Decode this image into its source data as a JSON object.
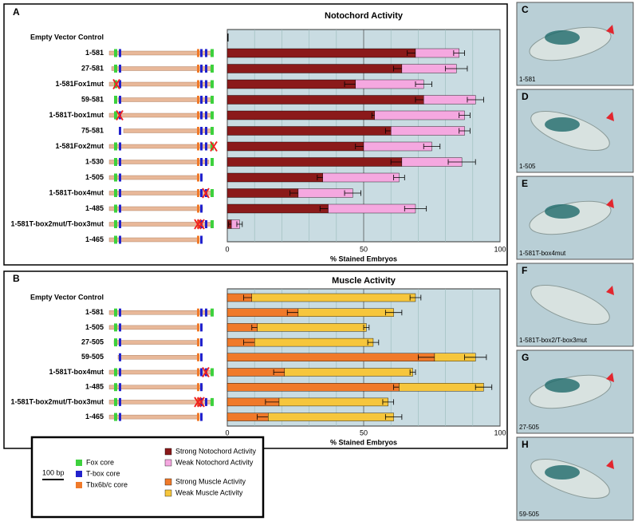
{
  "chart_data": [
    {
      "type": "stacked-barh",
      "panel": "A",
      "title": "Notochord Activity",
      "xlabel": "% Stained Embryos",
      "categories": [
        "Empty Vector Control",
        "1-581",
        "27-581",
        "1-581Fox1mut",
        "59-581",
        "1-581T-box1mut",
        "75-581",
        "1-581Fox2mut",
        "1-530",
        "1-505",
        "1-581T-box4mut",
        "1-485",
        "1-581T-box2mut/T-box3mut",
        "1-465"
      ],
      "series": [
        {
          "name": "Strong Notochord Activity",
          "color": "#8b1a1a",
          "values": [
            0,
            69,
            64,
            47,
            72,
            54,
            60,
            50,
            64,
            35,
            26,
            37,
            1.5,
            0
          ],
          "errors": [
            0,
            3,
            3,
            4,
            3,
            1,
            2,
            3,
            4,
            2,
            3,
            3,
            1,
            0
          ]
        },
        {
          "name": "Weak Notochord Activity",
          "color": "#f5a8e0",
          "values": [
            0,
            16,
            20,
            25,
            19,
            33,
            27,
            25,
            22,
            28,
            20,
            32,
            3,
            0
          ],
          "errors": [
            0,
            2,
            4,
            3,
            3,
            2,
            2,
            3,
            5,
            2,
            3,
            4,
            1,
            0
          ]
        }
      ],
      "xlim": [
        0,
        100
      ],
      "xticks": [
        0,
        50,
        100
      ],
      "minor_xticks": [
        10,
        20,
        30,
        40,
        60,
        70,
        80,
        90
      ],
      "background": "#c9dce2"
    },
    {
      "type": "stacked-barh",
      "panel": "B",
      "title": "Muscle Activity",
      "xlabel": "% Stained Embryos",
      "categories": [
        "Empty Vector Control",
        "1-581",
        "1-505",
        "27-505",
        "59-505",
        "1-581T-box4mut",
        "1-485",
        "1-581T-box2mut/T-box3mut",
        "1-465"
      ],
      "series": [
        {
          "name": "Strong Muscle Activity",
          "color": "#f07a2a",
          "values": [
            9,
            26,
            11,
            10,
            76,
            21,
            63,
            19,
            15
          ],
          "errors": [
            3,
            4,
            2,
            4,
            6,
            4,
            2,
            5,
            4
          ]
        },
        {
          "name": "Weak Muscle Activity",
          "color": "#f6c63c",
          "values": [
            60,
            35,
            40,
            43.5,
            15,
            47,
            31,
            40,
            46
          ],
          "errors": [
            2,
            3,
            1,
            2,
            4,
            1,
            3,
            2,
            3
          ]
        }
      ],
      "xlim": [
        0,
        100
      ],
      "xticks": [
        0,
        50,
        100
      ],
      "minor_xticks": [
        10,
        20,
        30,
        40,
        60,
        70,
        80,
        90
      ],
      "background": "#c9dce2"
    }
  ],
  "construct_legend": {
    "items": [
      {
        "label": "Fox core",
        "color": "#3dd13d"
      },
      {
        "label": "T-box core",
        "color": "#2222cc"
      },
      {
        "label": "Tbx6b/c core",
        "color": "#f07a2a"
      }
    ],
    "scale_bar": "100 bp"
  },
  "images": [
    {
      "panel": "C",
      "caption": "1-581"
    },
    {
      "panel": "D",
      "caption": "1-505"
    },
    {
      "panel": "E",
      "caption": "1-581T-box4mut"
    },
    {
      "panel": "F",
      "caption": "1-581T-box2/T-box3mut"
    },
    {
      "panel": "G",
      "caption": "27-505"
    },
    {
      "panel": "H",
      "caption": "59-505"
    }
  ]
}
